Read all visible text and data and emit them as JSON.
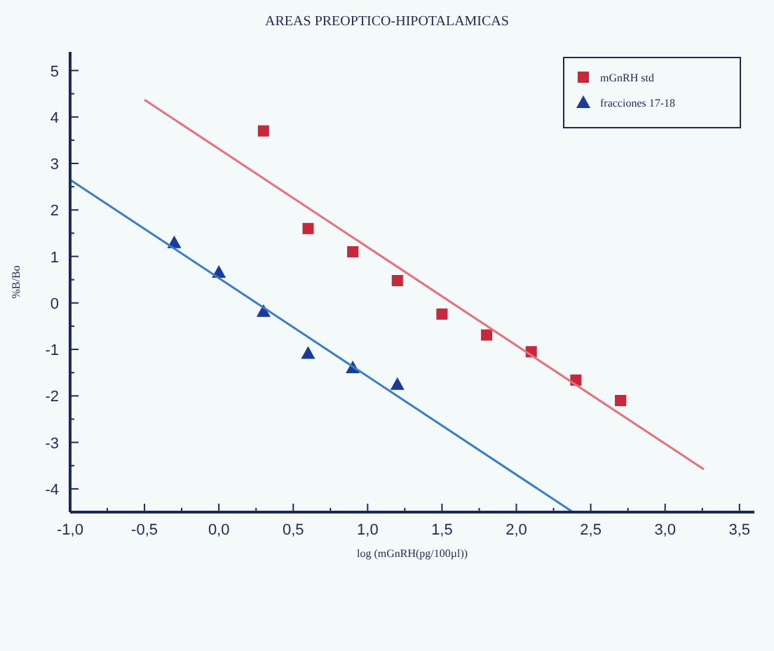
{
  "chart_data": {
    "type": "scatter",
    "title": "AREAS PREOPTICO-HIPOTALAMICAS",
    "xlabel": "log (mGnRH(pg/100µl))",
    "ylabel": "%B/Bo",
    "xlim": [
      -1.0,
      3.6
    ],
    "ylim": [
      -4.5,
      5.4
    ],
    "xticks": [
      {
        "value": -1.0,
        "label": "-1,0"
      },
      {
        "value": -0.75,
        "label": null
      },
      {
        "value": -0.5,
        "label": "-0,5"
      },
      {
        "value": -0.25,
        "label": null
      },
      {
        "value": 0,
        "label": "0,0"
      },
      {
        "value": 0.25,
        "label": null
      },
      {
        "value": 0.5,
        "label": "0,5"
      },
      {
        "value": 0.75,
        "label": null
      },
      {
        "value": 1.0,
        "label": "1,0"
      },
      {
        "value": 1.25,
        "label": null
      },
      {
        "value": 1.5,
        "label": "1,5"
      },
      {
        "value": 1.75,
        "label": null
      },
      {
        "value": 2.0,
        "label": "2,0"
      },
      {
        "value": 2.25,
        "label": null
      },
      {
        "value": 2.5,
        "label": "2,5"
      },
      {
        "value": 2.75,
        "label": null
      },
      {
        "value": 3.0,
        "label": "3,0"
      },
      {
        "value": 3.25,
        "label": null
      },
      {
        "value": 3.5,
        "label": "3,5"
      }
    ],
    "yticks": [
      -4,
      {
        "value": -3.5,
        "label": null
      },
      -3,
      {
        "value": -2.5,
        "label": null
      },
      -2,
      {
        "value": -1.5,
        "label": null
      },
      -1,
      {
        "value": -0.5,
        "label": null
      },
      0,
      {
        "value": 0.5,
        "label": null
      },
      1,
      {
        "value": 1.5,
        "label": null
      },
      2,
      {
        "value": 2.5,
        "label": null
      },
      3,
      {
        "value": 3.5,
        "label": null
      },
      4,
      {
        "value": 4.5,
        "label": null
      },
      5
    ],
    "legend": "top right",
    "grid": false,
    "series": [
      {
        "name": "mGnRH std",
        "marker": "square",
        "color": "#c8283c",
        "x": [
          0.3,
          0.6,
          0.9,
          1.2,
          1.5,
          1.8,
          2.1,
          2.4,
          2.7
        ],
        "values": [
          3.7,
          1.6,
          1.1,
          0.48,
          -0.24,
          -0.69,
          -1.05,
          -1.66,
          -2.1
        ]
      },
      {
        "name": "fracciones 17-18",
        "marker": "triangle",
        "color": "#1c3a9c",
        "x": [
          -0.3,
          0.0,
          0.3,
          0.6,
          0.9,
          1.2
        ],
        "values": [
          1.3,
          0.66,
          -0.18,
          -1.08,
          -1.39,
          -1.75
        ]
      },
      {
        "type": "line",
        "color": "#e8707c",
        "x": [
          -0.5,
          3.26
        ],
        "values": [
          4.37,
          -3.58
        ]
      },
      {
        "type": "line",
        "color": "#3a7ccc",
        "x": [
          -1.0,
          2.38
        ],
        "values": [
          2.65,
          -4.5
        ]
      }
    ]
  }
}
